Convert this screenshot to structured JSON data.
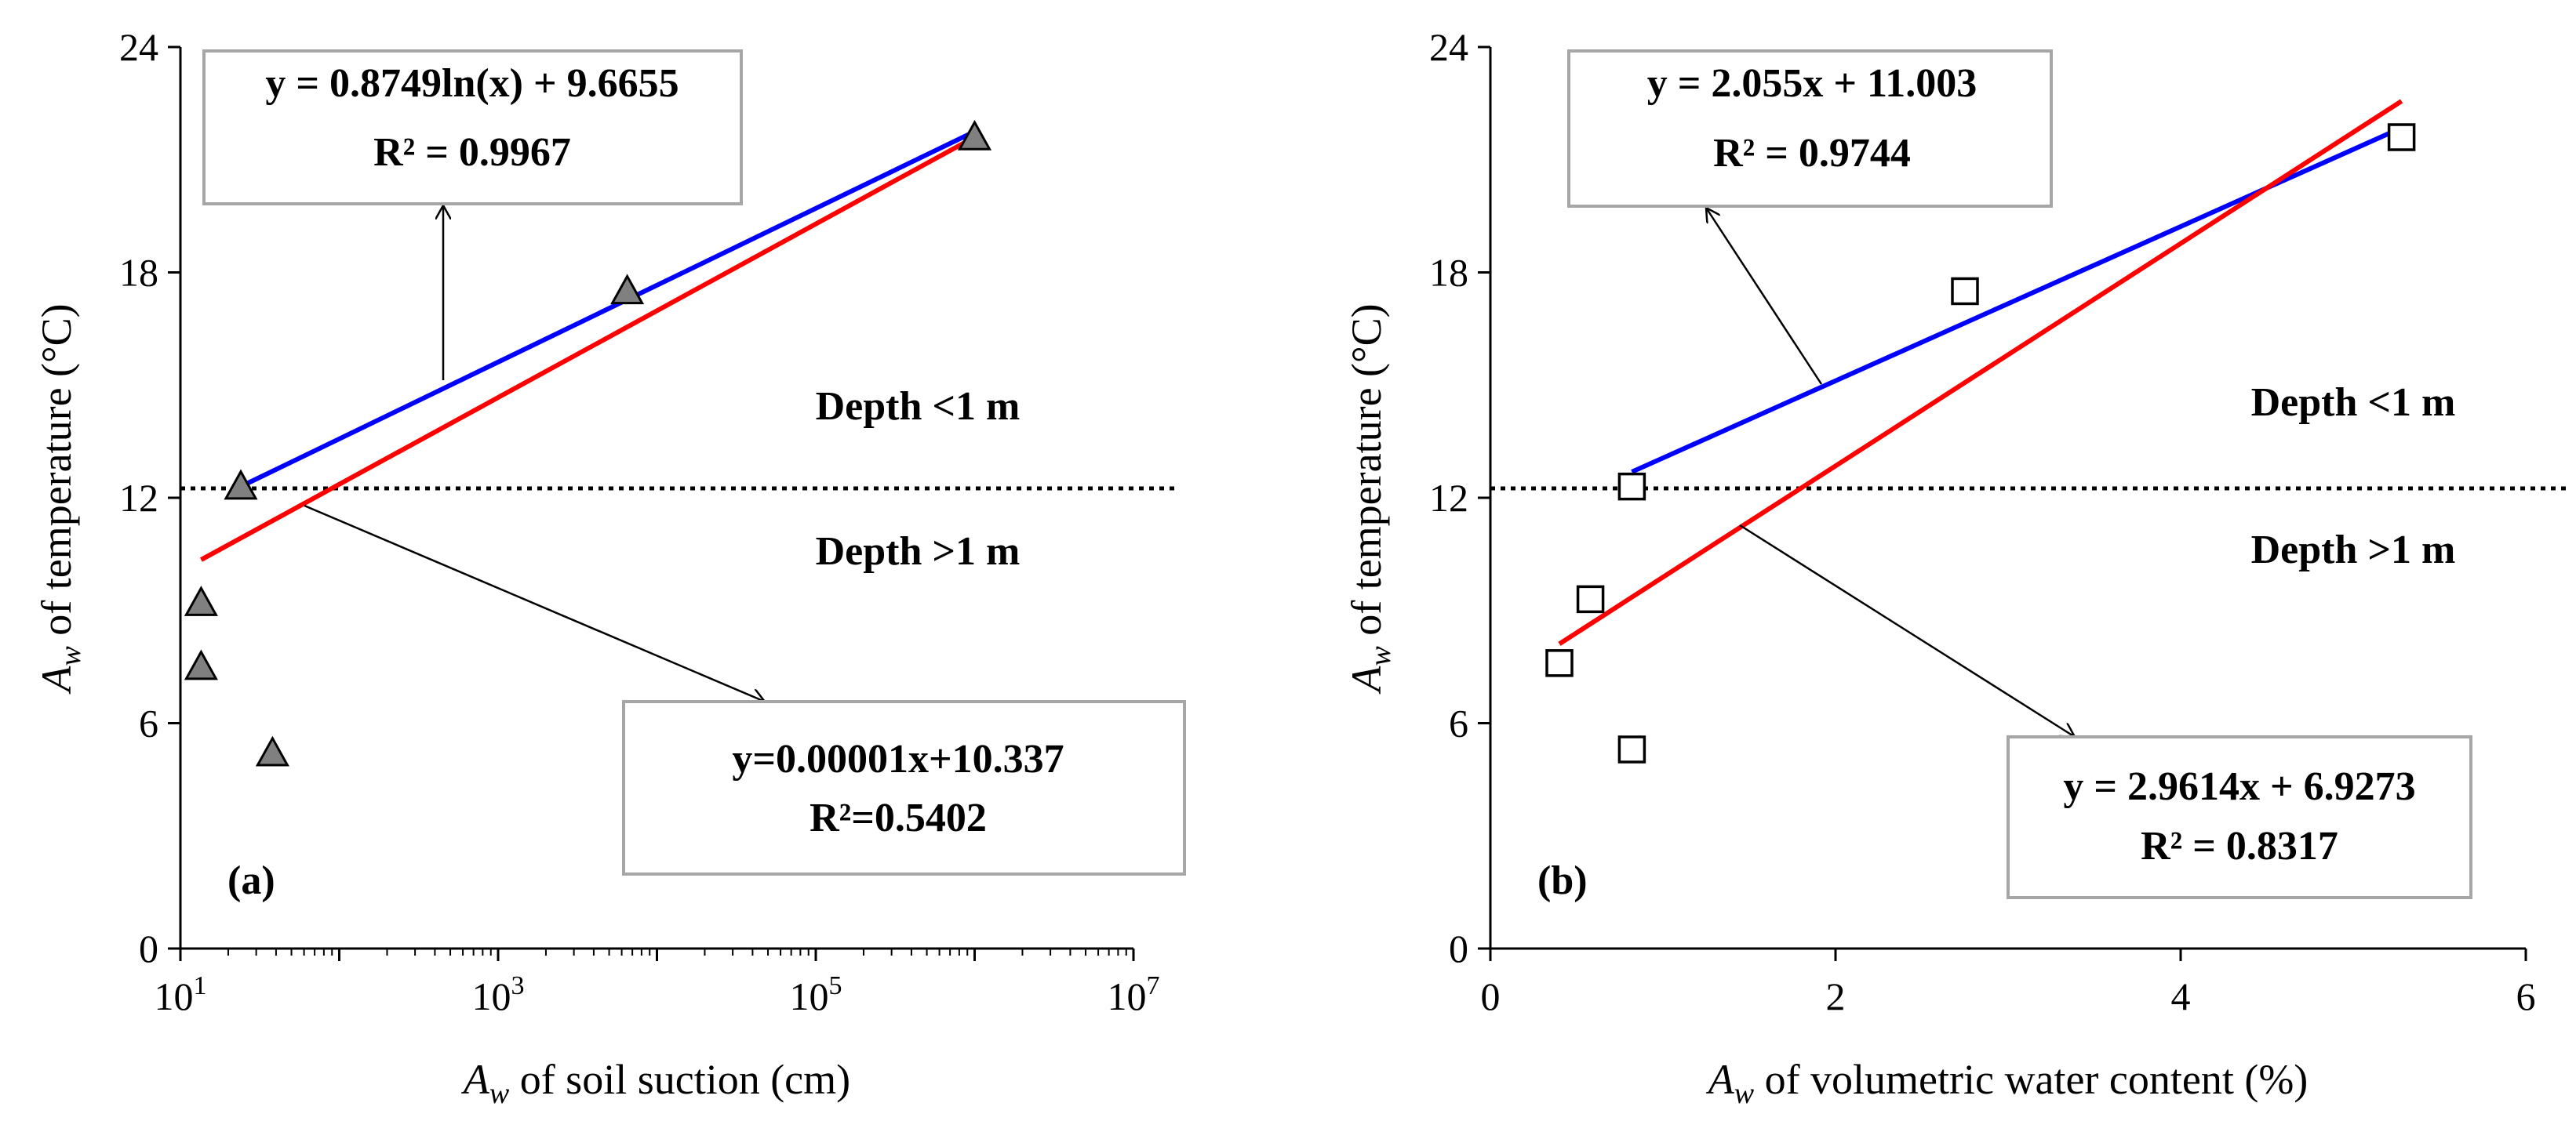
{
  "chart_data": [
    {
      "type": "scatter",
      "panel_label": "(a)",
      "xscale": "log",
      "xlim": [
        10,
        10000000
      ],
      "ylim": [
        0,
        24
      ],
      "xticks": [
        {
          "value": 10,
          "base": "10",
          "exp": "1"
        },
        {
          "value": 1000,
          "base": "10",
          "exp": "3"
        },
        {
          "value": 100000,
          "base": "10",
          "exp": "5"
        },
        {
          "value": 10000000,
          "base": "10",
          "exp": "7"
        }
      ],
      "yticks": [
        "0",
        "6",
        "12",
        "18",
        "24"
      ],
      "xlabel": {
        "italic": "A",
        "sub": "w",
        "text": " of soil suction (cm)"
      },
      "ylabel": {
        "italic": "A",
        "sub": "w",
        "text": " of temperature (°C)"
      },
      "marker": "triangle",
      "marker_color": "#808080",
      "points": [
        {
          "x": 13.5,
          "y": 7.5
        },
        {
          "x": 13.5,
          "y": 9.2
        },
        {
          "x": 24,
          "y": 12.3
        },
        {
          "x": 38,
          "y": 5.2
        },
        {
          "x": 6500,
          "y": 17.5
        },
        {
          "x": 1000000,
          "y": 21.6
        }
      ],
      "threshold": {
        "y": 12.25,
        "color": "#000000"
      },
      "region_labels": {
        "above": "Depth <1 m",
        "below": "Depth >1 m"
      },
      "fits": [
        {
          "name": "log fit",
          "color": "#0000ff",
          "x": [
            24,
            1000000
          ],
          "y": [
            12.3,
            21.75
          ]
        },
        {
          "name": "linear fit",
          "color": "#ff0000",
          "x": [
            13.5,
            1000000
          ],
          "y": [
            10.35,
            21.6
          ]
        }
      ],
      "equations": [
        {
          "line1": "y = 0.8749ln(x) + 9.6655",
          "line2": "R² = 0.9967",
          "color": "#0000ff"
        },
        {
          "line1": "y=0.00001x+10.337",
          "line2": "R²=0.5402",
          "color": "#ff0000"
        }
      ]
    },
    {
      "type": "scatter",
      "panel_label": "(b)",
      "xscale": "linear",
      "xlim": [
        0,
        6
      ],
      "ylim": [
        0,
        24
      ],
      "xticks": [
        "0",
        "2",
        "4",
        "6"
      ],
      "yticks": [
        "0",
        "6",
        "12",
        "18",
        "24"
      ],
      "xlabel": {
        "italic": "A",
        "sub": "w",
        "text": " of volumetric water content (%)"
      },
      "ylabel": {
        "italic": "A",
        "sub": "w",
        "text": " of temperature (°C)"
      },
      "marker": "square",
      "marker_color": "#ffffff",
      "points": [
        {
          "x": 0.4,
          "y": 7.6
        },
        {
          "x": 0.58,
          "y": 9.3
        },
        {
          "x": 0.82,
          "y": 12.3
        },
        {
          "x": 0.82,
          "y": 5.3
        },
        {
          "x": 2.75,
          "y": 17.5
        },
        {
          "x": 5.28,
          "y": 21.6
        }
      ],
      "threshold": {
        "y": 12.25,
        "color": "#000000"
      },
      "region_labels": {
        "above": "Depth <1 m",
        "below": "Depth >1 m"
      },
      "fits": [
        {
          "name": "linear fit (depth <1 m)",
          "color": "#0000ff",
          "x": [
            0.82,
            5.28
          ],
          "y": [
            12.69,
            21.85
          ]
        },
        {
          "name": "linear fit (all depths)",
          "color": "#ff0000",
          "x": [
            0.4,
            5.28
          ],
          "y": [
            8.11,
            22.56
          ]
        }
      ],
      "equations": [
        {
          "line1": "y = 2.055x + 11.003",
          "line2": "R² = 0.9744",
          "color": "#0000ff"
        },
        {
          "line1": "y = 2.9614x + 6.9273",
          "line2": "R² = 0.8317",
          "color": "#ff0000"
        }
      ]
    }
  ]
}
